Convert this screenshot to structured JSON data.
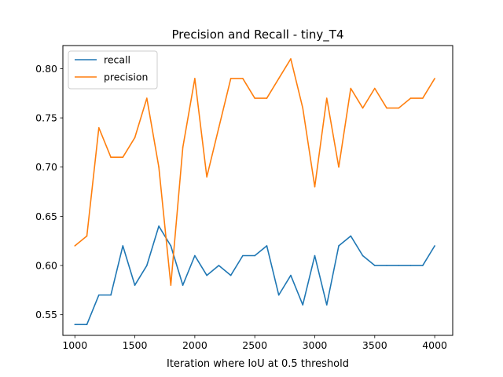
{
  "chart_data": {
    "type": "line",
    "title": "Precision and Recall - tiny_T4",
    "xlabel": "Iteration where IoU at 0.5 threshold",
    "ylabel": "",
    "xlim": [
      900,
      4150
    ],
    "ylim": [
      0.529,
      0.8235
    ],
    "xticks": [
      "1000",
      "1500",
      "2000",
      "2500",
      "3000",
      "3500",
      "4000"
    ],
    "yticks": [
      "0.55",
      "0.60",
      "0.65",
      "0.70",
      "0.75",
      "0.80"
    ],
    "x": [
      1000,
      1100,
      1200,
      1300,
      1400,
      1500,
      1600,
      1700,
      1800,
      1900,
      2000,
      2100,
      2200,
      2300,
      2400,
      2500,
      2600,
      2700,
      2800,
      2900,
      3000,
      3100,
      3200,
      3300,
      3400,
      3500,
      3600,
      3700,
      3800,
      3900,
      4000
    ],
    "series": [
      {
        "name": "recall",
        "color": "#1f77b4",
        "values": [
          0.54,
          0.54,
          0.57,
          0.57,
          0.62,
          0.58,
          0.6,
          0.64,
          0.62,
          0.58,
          0.61,
          0.59,
          0.6,
          0.59,
          0.61,
          0.61,
          0.62,
          0.57,
          0.59,
          0.56,
          0.61,
          0.56,
          0.62,
          0.63,
          0.61,
          0.6,
          0.6,
          0.6,
          0.6,
          0.6,
          0.62
        ]
      },
      {
        "name": "precision",
        "color": "#ff7f0e",
        "values": [
          0.62,
          0.63,
          0.74,
          0.71,
          0.71,
          0.73,
          0.77,
          0.7,
          0.58,
          0.72,
          0.79,
          0.69,
          0.74,
          0.79,
          0.79,
          0.77,
          0.77,
          0.79,
          0.81,
          0.76,
          0.68,
          0.77,
          0.7,
          0.78,
          0.76,
          0.78,
          0.76,
          0.76,
          0.77,
          0.77,
          0.79
        ]
      }
    ],
    "legend_position": "top-left",
    "grid": false
  }
}
